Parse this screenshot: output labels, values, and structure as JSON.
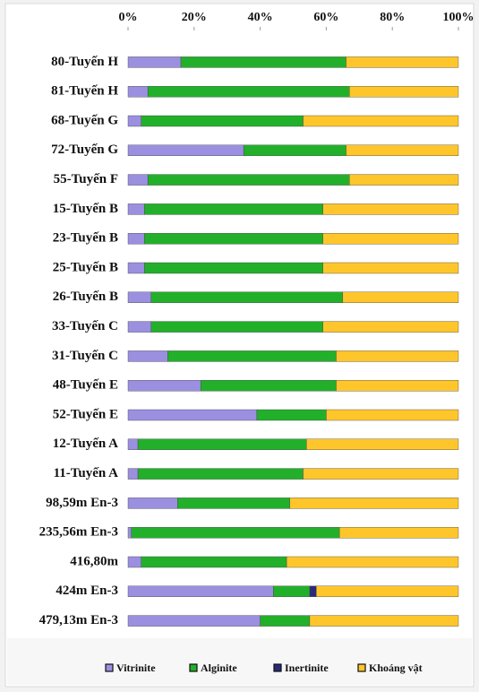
{
  "chart_data": {
    "type": "stacked-barh",
    "categories": [
      "80-Tuyến H",
      "81-Tuyến H",
      "68-Tuyến G",
      "72-Tuyến G",
      "55-Tuyến F",
      "15-Tuyến B",
      "23-Tuyến B",
      "25-Tuyến B",
      "26-Tuyến B",
      "33-Tuyến C",
      "31-Tuyến C",
      "48-Tuyến E",
      "52-Tuyến E",
      "12-Tuyến A",
      "11-Tuyến A",
      "98,59m En-3",
      "235,56m En-3",
      "416,80m",
      "424m En-3",
      "479,13m En-3"
    ],
    "series": [
      {
        "name": "Vitrinite",
        "color": "#9b8fe0",
        "values": [
          16,
          6,
          4,
          35,
          6,
          5,
          5,
          5,
          7,
          7,
          12,
          22,
          39,
          3,
          3,
          15,
          1,
          4,
          44,
          40
        ]
      },
      {
        "name": "Alginite",
        "color": "#22b02a",
        "values": [
          50,
          61,
          49,
          31,
          61,
          54,
          54,
          54,
          58,
          52,
          51,
          41,
          21,
          51,
          50,
          34,
          63,
          44,
          11,
          15
        ]
      },
      {
        "name": "Inertinite",
        "color": "#2a2a7a",
        "values": [
          0,
          0,
          0,
          0,
          0,
          0,
          0,
          0,
          0,
          0,
          0,
          0,
          0,
          0,
          0,
          0,
          0,
          0,
          2,
          0
        ]
      },
      {
        "name": "Khoáng vật",
        "color": "#ffc62b",
        "values": [
          34,
          33,
          47,
          34,
          33,
          41,
          41,
          41,
          35,
          41,
          37,
          37,
          40,
          46,
          47,
          51,
          36,
          52,
          43,
          45
        ]
      }
    ],
    "xlim": [
      0,
      100
    ],
    "xticks": [
      {
        "value": 0,
        "label": "0%"
      },
      {
        "value": 20,
        "label": "20%"
      },
      {
        "value": 40,
        "label": "40%"
      },
      {
        "value": 60,
        "label": "60%"
      },
      {
        "value": 80,
        "label": "80%"
      },
      {
        "value": 100,
        "label": "100%"
      }
    ]
  }
}
